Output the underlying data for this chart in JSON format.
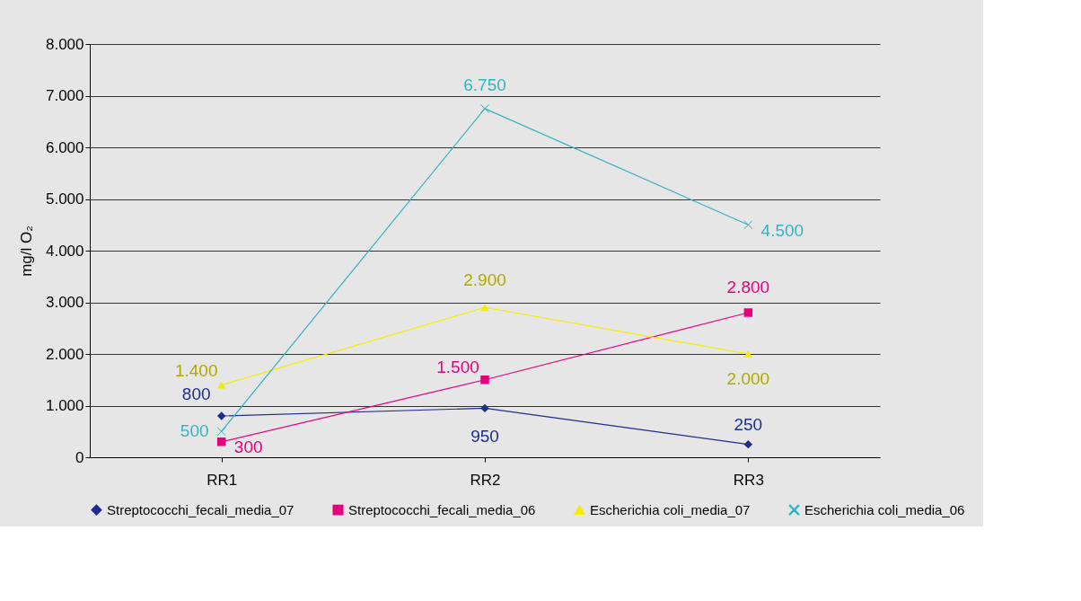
{
  "chart_data": {
    "type": "line",
    "ylabel": "mg/l O₂",
    "categories": [
      "RR1",
      "RR2",
      "RR3"
    ],
    "series": [
      {
        "name": "Streptococchi_fecali_media_07",
        "color": "#1f2e8a",
        "marker": "diamond",
        "values": [
          800,
          950,
          250
        ],
        "value_labels": [
          "800",
          "950",
          "250"
        ]
      },
      {
        "name": "Streptococchi_fecali_media_06",
        "color": "#e6007e",
        "marker": "square",
        "values": [
          300,
          1500,
          2800
        ],
        "value_labels": [
          "300",
          "1.500",
          "2.800"
        ]
      },
      {
        "name": "Escherichia coli_media_07",
        "color": "#f5ec00",
        "marker": "triangle",
        "values": [
          1400,
          2900,
          2000
        ],
        "value_labels": [
          "1.400",
          "2.900",
          "2.000"
        ]
      },
      {
        "name": "Escherichia coli_media_06",
        "color": "#35b3c4",
        "marker": "cross",
        "values": [
          500,
          6750,
          4500
        ],
        "value_labels": [
          "500",
          "6.750",
          "4.500"
        ]
      }
    ],
    "ylim": [
      0,
      8000
    ],
    "yticks": [
      0,
      {
        "value": 1000,
        "label": "1.000"
      },
      {
        "value": 2000,
        "label": "2.000"
      },
      {
        "value": 3000,
        "label": "3.000"
      },
      {
        "value": 4000,
        "label": "4.000"
      },
      {
        "value": 5000,
        "label": "5.000"
      },
      {
        "value": 6000,
        "label": "6.000"
      },
      {
        "value": 7000,
        "label": "7.000"
      },
      {
        "value": 8000,
        "label": "8.000"
      }
    ],
    "grid": "y",
    "legend": "bottom",
    "line_style": "solid"
  }
}
